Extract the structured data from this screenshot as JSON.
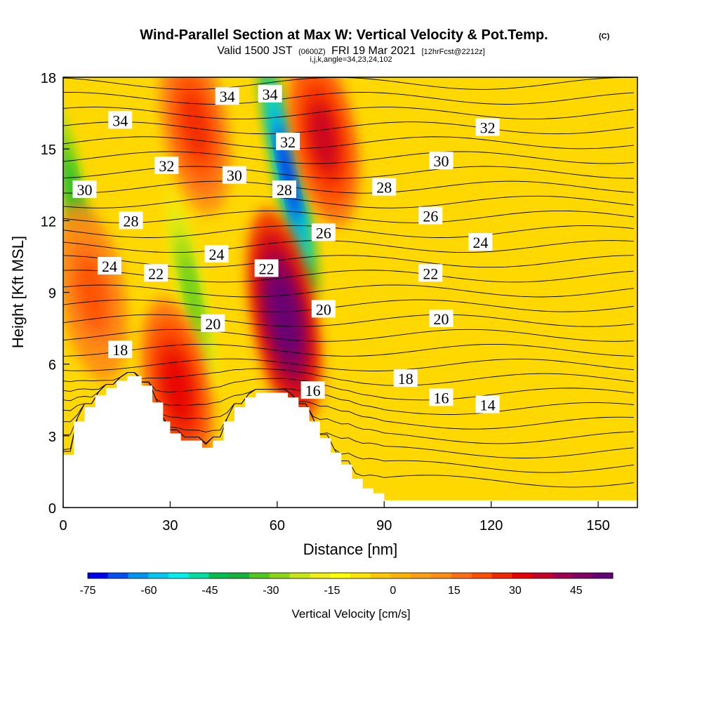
{
  "header": {
    "title": "Wind-Parallel Section at Max W: Vertical Velocity & Pot.Temp.",
    "copyright": "(C)",
    "valid_prefix": "Valid 1500 JST",
    "valid_utc": "(0600Z)",
    "valid_date": "FRI 19 Mar 2021",
    "forecast_tag": "[12hrFcst@2212z]",
    "grid_info": "i,j,k,angle=34,23,24,102"
  },
  "chart_data": {
    "type": "heatmap",
    "xlabel": "Distance [nm]",
    "ylabel": "Height [Kft MSL]",
    "xlim": [
      0,
      161
    ],
    "ylim": [
      0,
      18
    ],
    "xticks": [
      "0",
      "30",
      "60",
      "90",
      "120",
      "150"
    ],
    "yticks": [
      "0",
      "3",
      "6",
      "9",
      "12",
      "15",
      "18"
    ],
    "colorbar": {
      "label": "Vertical Velocity [cm/s]",
      "range": [
        -75,
        54
      ],
      "step": 5,
      "tick_labels": [
        "-75",
        "-60",
        "-45",
        "-30",
        "-15",
        "0",
        "15",
        "30",
        "45"
      ],
      "colors": [
        "#0000f0",
        "#0050f0",
        "#0096f0",
        "#00c8f0",
        "#00f0f0",
        "#00e0a0",
        "#00c050",
        "#14b43c",
        "#50c81e",
        "#8cd614",
        "#c8e614",
        "#f0f014",
        "#ffff00",
        "#ffe600",
        "#ffc800",
        "#ffb400",
        "#ffa014",
        "#ff8c14",
        "#ff6e14",
        "#ff5000",
        "#f02800",
        "#e60000",
        "#c80028",
        "#a00050",
        "#800064",
        "#640078"
      ]
    },
    "terrain_kft": [
      [
        0,
        2.2
      ],
      [
        3,
        2.2
      ],
      [
        3,
        3.6
      ],
      [
        6,
        3.6
      ],
      [
        6,
        4.2
      ],
      [
        9,
        4.2
      ],
      [
        9,
        4.7
      ],
      [
        12,
        4.7
      ],
      [
        12,
        5.0
      ],
      [
        15,
        5.0
      ],
      [
        15,
        5.3
      ],
      [
        18,
        5.3
      ],
      [
        18,
        5.5
      ],
      [
        22,
        5.5
      ],
      [
        22,
        5.1
      ],
      [
        25,
        5.1
      ],
      [
        25,
        4.4
      ],
      [
        28,
        4.4
      ],
      [
        28,
        3.6
      ],
      [
        30,
        3.6
      ],
      [
        30,
        3.1
      ],
      [
        33,
        3.1
      ],
      [
        33,
        2.8
      ],
      [
        39,
        2.8
      ],
      [
        39,
        2.5
      ],
      [
        42,
        2.5
      ],
      [
        42,
        2.8
      ],
      [
        45,
        2.8
      ],
      [
        45,
        3.6
      ],
      [
        48,
        3.6
      ],
      [
        48,
        4.2
      ],
      [
        51,
        4.2
      ],
      [
        51,
        4.6
      ],
      [
        54,
        4.6
      ],
      [
        54,
        4.8
      ],
      [
        63,
        4.8
      ],
      [
        63,
        4.6
      ],
      [
        66,
        4.6
      ],
      [
        66,
        4.2
      ],
      [
        69,
        4.2
      ],
      [
        69,
        3.6
      ],
      [
        72,
        3.6
      ],
      [
        72,
        2.9
      ],
      [
        75,
        2.9
      ],
      [
        75,
        2.3
      ],
      [
        78,
        2.3
      ],
      [
        78,
        1.8
      ],
      [
        81,
        1.8
      ],
      [
        81,
        1.2
      ],
      [
        84,
        1.2
      ],
      [
        84,
        0.8
      ],
      [
        87,
        0.8
      ],
      [
        87,
        0.6
      ],
      [
        90,
        0.6
      ],
      [
        90,
        0.3
      ],
      [
        161,
        0.3
      ]
    ],
    "velocity_features": [
      {
        "kind": "downdraft",
        "x": 63,
        "y": 14,
        "w_cms": -75
      },
      {
        "kind": "downdraft",
        "x": 3,
        "y": 13,
        "w_cms": -40
      },
      {
        "kind": "downdraft",
        "x": 36,
        "y": 9,
        "w_cms": -35
      },
      {
        "kind": "updraft",
        "x": 73,
        "y": 15.5,
        "w_cms": 35
      },
      {
        "kind": "updraft",
        "x": 62,
        "y": 8,
        "w_cms": 54
      },
      {
        "kind": "updraft",
        "x": 32,
        "y": 5,
        "w_cms": 30
      },
      {
        "kind": "updraft",
        "x": 37,
        "y": 16,
        "w_cms": 25
      },
      {
        "kind": "updraft",
        "x": 8,
        "y": 9,
        "w_cms": 20
      }
    ],
    "theta_labels": [
      {
        "text": "34",
        "x": 16,
        "y": 16.2
      },
      {
        "text": "34",
        "x": 46,
        "y": 17.2
      },
      {
        "text": "34",
        "x": 58,
        "y": 17.3
      },
      {
        "text": "32",
        "x": 63,
        "y": 15.3
      },
      {
        "text": "32",
        "x": 29,
        "y": 14.3
      },
      {
        "text": "32",
        "x": 119,
        "y": 15.9
      },
      {
        "text": "30",
        "x": 6,
        "y": 13.3
      },
      {
        "text": "30",
        "x": 48,
        "y": 13.9
      },
      {
        "text": "30",
        "x": 106,
        "y": 14.5
      },
      {
        "text": "28",
        "x": 19,
        "y": 12
      },
      {
        "text": "28",
        "x": 62,
        "y": 13.3
      },
      {
        "text": "28",
        "x": 90,
        "y": 13.4
      },
      {
        "text": "26",
        "x": 73,
        "y": 11.5
      },
      {
        "text": "26",
        "x": 103,
        "y": 12.2
      },
      {
        "text": "24",
        "x": 13,
        "y": 10.1
      },
      {
        "text": "24",
        "x": 43,
        "y": 10.6
      },
      {
        "text": "24",
        "x": 117,
        "y": 11.1
      },
      {
        "text": "22",
        "x": 26,
        "y": 9.8
      },
      {
        "text": "22",
        "x": 57,
        "y": 10
      },
      {
        "text": "22",
        "x": 103,
        "y": 9.8
      },
      {
        "text": "20",
        "x": 73,
        "y": 8.3
      },
      {
        "text": "20",
        "x": 42,
        "y": 7.7
      },
      {
        "text": "20",
        "x": 106,
        "y": 7.9
      },
      {
        "text": "18",
        "x": 16,
        "y": 6.6
      },
      {
        "text": "18",
        "x": 96,
        "y": 5.4
      },
      {
        "text": "16",
        "x": 70,
        "y": 4.9
      },
      {
        "text": "16",
        "x": 106,
        "y": 4.6
      },
      {
        "text": "14",
        "x": 119,
        "y": 4.3
      }
    ]
  }
}
